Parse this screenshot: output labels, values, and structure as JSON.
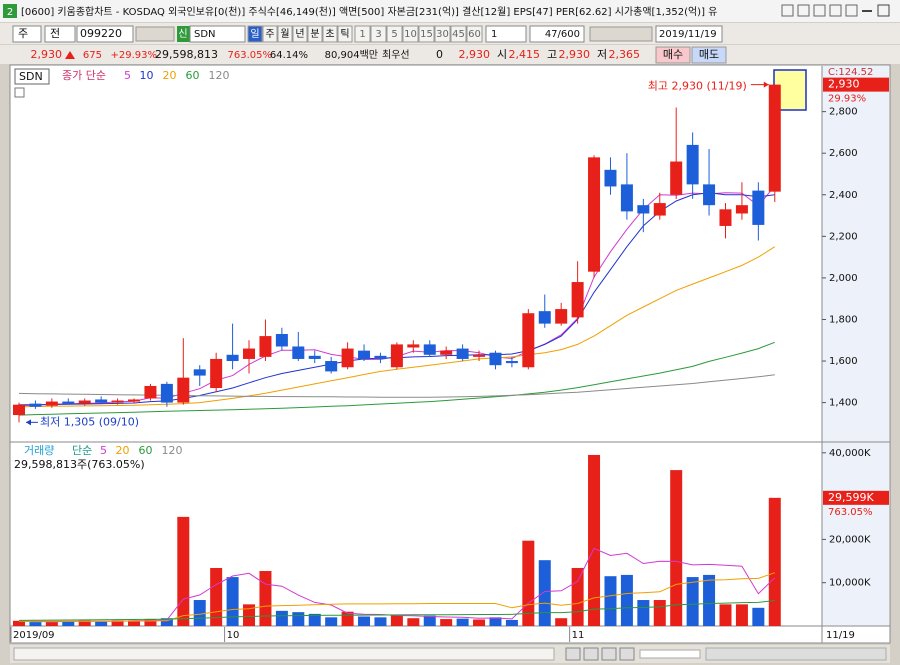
{
  "window": {
    "icon": "2",
    "title": "[0600] 키움종합차트 - KOSDAQ 외국인보유[0(천)] 주식수[46,149(천)] 액면[500] 자본금[231(억)] 결산[12월] EPS[47] PER[62.62] 시가총액[1,352(억)] 유"
  },
  "toolbar": {
    "market": "주",
    "prev": "전",
    "code": "099220",
    "badge": "신",
    "name": "SDN",
    "periods": [
      "일",
      "주",
      "월",
      "년",
      "분",
      "초",
      "틱"
    ],
    "minutes": [
      "1",
      "3",
      "5",
      "10",
      "15",
      "30",
      "45",
      "60"
    ],
    "count": "1",
    "range": "47/600",
    "date": "2019/11/19"
  },
  "quote": {
    "price": "2,930",
    "change": "675",
    "rate": "+29.93%",
    "volume": "29,598,813",
    "volume_rate": "763.05%",
    "turnover": "64.14%",
    "amount": "80,904백만",
    "best_label": "최우선",
    "best_qty": "0",
    "best_price": "2,930",
    "open_label": "시",
    "open": "2,415",
    "high_label": "고",
    "high": "2,930",
    "low_label": "저",
    "low": "2,365",
    "buy": "매수",
    "sell": "매도"
  },
  "chart_data": [
    {
      "type": "candlestick",
      "title": "SDN",
      "legend_prefix": "종가 단순",
      "corner_label": "C:124.52",
      "up_color": "#e8201a",
      "down_color": "#1c5fd8",
      "categories": [
        "2019/09",
        null,
        null,
        null,
        null,
        null,
        null,
        null,
        null,
        null,
        null,
        null,
        null,
        "10",
        null,
        null,
        null,
        null,
        null,
        null,
        null,
        null,
        null,
        null,
        null,
        null,
        null,
        null,
        null,
        null,
        null,
        null,
        null,
        null,
        "11",
        null,
        null,
        null,
        null,
        null,
        null,
        null,
        null,
        null,
        null,
        null,
        "11/19"
      ],
      "open": [
        1340,
        1395,
        1385,
        1405,
        1395,
        1415,
        1400,
        1405,
        1420,
        1490,
        1400,
        1560,
        1470,
        1630,
        1610,
        1620,
        1730,
        1670,
        1625,
        1600,
        1570,
        1650,
        1625,
        1570,
        1665,
        1680,
        1630,
        1660,
        1620,
        1640,
        1600,
        1570,
        1840,
        1780,
        1810,
        2030,
        2520,
        2450,
        2350,
        2300,
        2400,
        2640,
        2450,
        2250,
        2310,
        2420,
        2415
      ],
      "high": [
        1400,
        1410,
        1420,
        1420,
        1420,
        1430,
        1420,
        1420,
        1490,
        1500,
        1710,
        1580,
        1640,
        1780,
        1700,
        1800,
        1760,
        1740,
        1650,
        1620,
        1690,
        1680,
        1640,
        1690,
        1700,
        1700,
        1670,
        1680,
        1650,
        1650,
        1620,
        1850,
        1920,
        1880,
        2080,
        2590,
        2580,
        2600,
        2380,
        2410,
        2820,
        2700,
        2620,
        2360,
        2460,
        2460,
        2930
      ],
      "low": [
        1305,
        1370,
        1375,
        1390,
        1385,
        1395,
        1390,
        1395,
        1410,
        1380,
        1390,
        1480,
        1450,
        1560,
        1540,
        1600,
        1650,
        1600,
        1590,
        1540,
        1560,
        1600,
        1590,
        1560,
        1640,
        1620,
        1610,
        1600,
        1600,
        1560,
        1570,
        1560,
        1760,
        1770,
        1780,
        2000,
        2400,
        2280,
        2220,
        2280,
        2380,
        2380,
        2300,
        2190,
        2280,
        2180,
        2365
      ],
      "close": [
        1390,
        1380,
        1405,
        1395,
        1410,
        1400,
        1410,
        1415,
        1480,
        1400,
        1520,
        1530,
        1610,
        1600,
        1660,
        1720,
        1670,
        1610,
        1610,
        1550,
        1660,
        1610,
        1610,
        1680,
        1680,
        1630,
        1650,
        1610,
        1630,
        1580,
        1590,
        1830,
        1780,
        1850,
        1980,
        2580,
        2440,
        2320,
        2310,
        2360,
        2560,
        2450,
        2350,
        2330,
        2350,
        2255,
        2930
      ],
      "series": [
        {
          "name": "5",
          "color": "#d23ad2",
          "values": [
            1385,
            1388,
            1392,
            1394,
            1396,
            1398,
            1404,
            1406,
            1423,
            1421,
            1445,
            1467,
            1508,
            1530,
            1584,
            1624,
            1652,
            1652,
            1654,
            1632,
            1620,
            1608,
            1608,
            1622,
            1648,
            1642,
            1650,
            1650,
            1640,
            1620,
            1612,
            1648,
            1682,
            1726,
            1806,
            2004,
            2126,
            2234,
            2330,
            2400,
            2398,
            2408,
            2404,
            2410,
            2408,
            2347,
            2443
          ]
        },
        {
          "name": "10",
          "color": "#2233cc",
          "values": [
            1390,
            1390,
            1391,
            1392,
            1393,
            1394,
            1396,
            1398,
            1405,
            1408,
            1420,
            1434,
            1452,
            1470,
            1495,
            1520,
            1540,
            1555,
            1570,
            1585,
            1600,
            1610,
            1614,
            1616,
            1620,
            1622,
            1626,
            1628,
            1630,
            1630,
            1634,
            1650,
            1680,
            1720,
            1800,
            1930,
            2040,
            2150,
            2250,
            2320,
            2370,
            2400,
            2410,
            2400,
            2400,
            2390,
            2400
          ]
        },
        {
          "name": "20",
          "color": "#f0a000",
          "values": [
            1380,
            1381,
            1382,
            1383,
            1384,
            1385,
            1386,
            1387,
            1390,
            1392,
            1395,
            1400,
            1410,
            1420,
            1432,
            1445,
            1460,
            1475,
            1490,
            1505,
            1520,
            1535,
            1550,
            1560,
            1570,
            1580,
            1590,
            1600,
            1610,
            1615,
            1620,
            1630,
            1640,
            1655,
            1680,
            1720,
            1770,
            1820,
            1860,
            1900,
            1940,
            1970,
            2000,
            2030,
            2060,
            2100,
            2150
          ]
        },
        {
          "name": "60",
          "color": "#2a9a3a",
          "values": [
            1340,
            1342,
            1344,
            1346,
            1348,
            1350,
            1352,
            1354,
            1356,
            1358,
            1360,
            1362,
            1364,
            1366,
            1368,
            1370,
            1373,
            1376,
            1379,
            1382,
            1385,
            1389,
            1393,
            1397,
            1401,
            1405,
            1410,
            1416,
            1422,
            1428,
            1434,
            1442,
            1450,
            1460,
            1472,
            1486,
            1500,
            1514,
            1528,
            1542,
            1558,
            1574,
            1598,
            1618,
            1638,
            1660,
            1690
          ]
        },
        {
          "name": "120",
          "color": "#8a8a8a",
          "values": [
            1444,
            1443,
            1442,
            1441,
            1440,
            1439,
            1438,
            1437,
            1436,
            1435,
            1434,
            1433,
            1432,
            1431,
            1430,
            1430,
            1429,
            1429,
            1428,
            1428,
            1427,
            1427,
            1426,
            1426,
            1426,
            1426,
            1427,
            1428,
            1430,
            1432,
            1435,
            1438,
            1442,
            1446,
            1450,
            1456,
            1462,
            1468,
            1474,
            1480,
            1486,
            1492,
            1500,
            1508,
            1516,
            1524,
            1534
          ]
        }
      ],
      "ylim": [
        1220,
        3010
      ],
      "yticks": [
        {
          "value": 1400,
          "label": "1,400"
        },
        {
          "value": 1600,
          "label": "1,600"
        },
        {
          "value": 1800,
          "label": "1,800"
        },
        {
          "value": 2000,
          "label": "2,000"
        },
        {
          "value": 2200,
          "label": "2,200"
        },
        {
          "value": 2400,
          "label": "2,400"
        },
        {
          "value": 2600,
          "label": "2,600"
        },
        {
          "value": 2800,
          "label": "2,800"
        }
      ],
      "price_marker": {
        "value": 2930,
        "label": "2,930",
        "change": "29.93%",
        "color": "#e8201a"
      },
      "annotations": [
        {
          "text": "최고 2,930 (11/19)",
          "value": 2930,
          "at": "last",
          "color": "#e8201a"
        },
        {
          "text": "최저 1,305 (09/10)",
          "value": 1305,
          "at": "first",
          "color": "#1c3fc8"
        }
      ]
    },
    {
      "type": "bar",
      "title": "거래량",
      "legend_prefix": "단순",
      "subtitle": "29,598,813주(763.05%)",
      "values": [
        1200,
        900,
        900,
        1100,
        1300,
        1000,
        1300,
        1300,
        1500,
        1800,
        25200,
        6000,
        13400,
        11300,
        5000,
        12700,
        3500,
        3200,
        2800,
        2000,
        3300,
        2200,
        2000,
        2600,
        1800,
        2400,
        1600,
        1700,
        1500,
        2000,
        1400,
        19700,
        15200,
        1800,
        13400,
        39500,
        11500,
        11800,
        6000,
        6000,
        36000,
        11300,
        11800,
        5000,
        5000,
        4200,
        29599
      ],
      "series": [
        {
          "name": "5",
          "color": "#d23ad2",
          "values": [
            1100,
            1050,
            1000,
            1050,
            1080,
            1100,
            1120,
            1200,
            1280,
            1380,
            6220,
            7160,
            9580,
            11540,
            12180,
            9680,
            9180,
            7140,
            5440,
            4840,
            2960,
            2700,
            2660,
            2420,
            2380,
            2200,
            2080,
            2020,
            1800,
            1840,
            1640,
            5260,
            7960,
            8120,
            10300,
            17920,
            16280,
            16800,
            14440,
            14960,
            14920,
            14120,
            14220,
            14020,
            13820,
            7460,
            11120
          ]
        },
        {
          "name": "20",
          "color": "#f0a000",
          "values": [
            1100,
            1100,
            1100,
            1100,
            1100,
            1100,
            1120,
            1140,
            1160,
            1200,
            2400,
            2700,
            3300,
            3800,
            4000,
            4600,
            4700,
            4800,
            4900,
            5000,
            5100,
            5100,
            5100,
            5150,
            5150,
            5200,
            5200,
            5200,
            5200,
            5200,
            4200,
            4900,
            5300,
            4800,
            5200,
            6500,
            7000,
            7500,
            7700,
            7900,
            9600,
            10100,
            10600,
            10700,
            10900,
            11000,
            12300
          ]
        },
        {
          "name": "60",
          "color": "#2a9a3a",
          "values": [
            1300,
            1330,
            1360,
            1390,
            1420,
            1450,
            1480,
            1510,
            1540,
            1570,
            1700,
            1800,
            1950,
            2100,
            2200,
            2300,
            2350,
            2400,
            2450,
            2480,
            2500,
            2520,
            2540,
            2560,
            2580,
            2600,
            2620,
            2640,
            2650,
            2660,
            2670,
            2900,
            3100,
            3100,
            3300,
            3900,
            4000,
            4200,
            4300,
            4400,
            4900,
            5000,
            5200,
            5300,
            5400,
            5450,
            5900
          ]
        },
        {
          "name": "120",
          "color": "#8a8a8a",
          "values": [
            null,
            null,
            null,
            null,
            null,
            null,
            null,
            null,
            null,
            null,
            null,
            null,
            null,
            null,
            null,
            null,
            null,
            null,
            null,
            null,
            null,
            null,
            null,
            null,
            null,
            null,
            null,
            null,
            null,
            null,
            null,
            null,
            null,
            null,
            null,
            null,
            null,
            null,
            null,
            null,
            null,
            null,
            null,
            null,
            null,
            null,
            null
          ]
        }
      ],
      "ylim": [
        0,
        41800
      ],
      "yticks": [
        {
          "value": 10000,
          "label": "10,000K"
        },
        {
          "value": 20000,
          "label": "20,000K"
        },
        {
          "value": 40000,
          "label": "40,000K"
        }
      ],
      "price_marker": {
        "value": 29599,
        "label": "29,599K",
        "change": "763.05%",
        "color": "#e8201a"
      }
    }
  ]
}
